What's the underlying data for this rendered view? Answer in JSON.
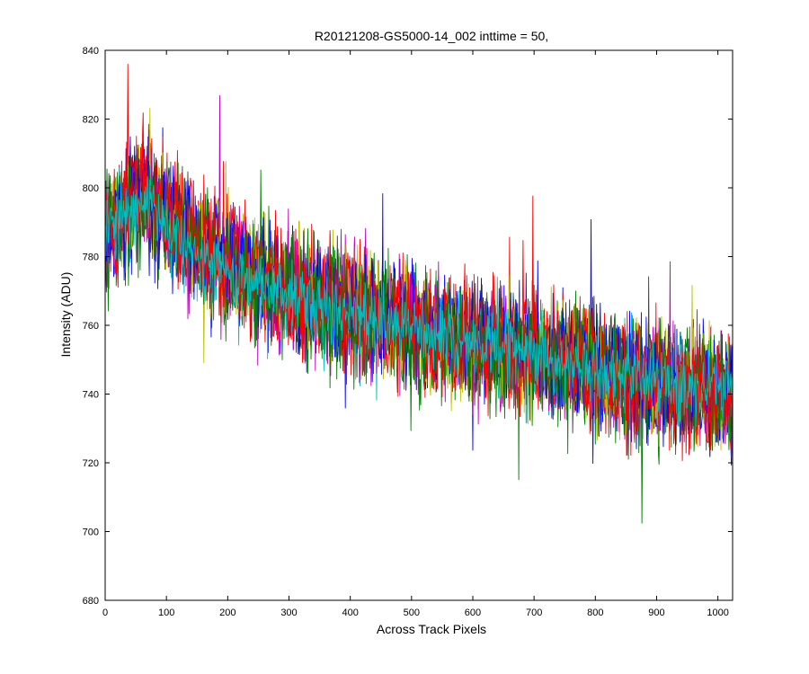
{
  "chart_data": {
    "type": "line",
    "title": "R20121208-GS5000-14_002 inttime = 50,",
    "xlabel": "Across Track Pixels",
    "ylabel": "Intensity (ADU)",
    "xlim": [
      0,
      1024
    ],
    "ylim": [
      680,
      840
    ],
    "x_ticks": [
      0,
      100,
      200,
      300,
      400,
      500,
      600,
      700,
      800,
      900,
      1000
    ],
    "y_ticks": [
      680,
      700,
      720,
      740,
      760,
      780,
      800,
      820,
      840
    ],
    "grid": false,
    "legend": "none",
    "series": [
      {
        "color": "#0000ff",
        "trend": [
          [
            0,
            787
          ],
          [
            60,
            800
          ],
          [
            150,
            783
          ],
          [
            300,
            770
          ],
          [
            500,
            760
          ],
          [
            700,
            752
          ],
          [
            900,
            743
          ],
          [
            1024,
            740
          ]
        ],
        "noise": 11
      },
      {
        "color": "#008000",
        "trend": [
          [
            0,
            786
          ],
          [
            60,
            798
          ],
          [
            150,
            782
          ],
          [
            300,
            769
          ],
          [
            500,
            759
          ],
          [
            700,
            751
          ],
          [
            900,
            742
          ],
          [
            1024,
            739
          ]
        ],
        "noise": 11
      },
      {
        "color": "#ff0000",
        "trend": [
          [
            0,
            788
          ],
          [
            60,
            801
          ],
          [
            150,
            784
          ],
          [
            300,
            771
          ],
          [
            500,
            760
          ],
          [
            700,
            752
          ],
          [
            900,
            742
          ],
          [
            1024,
            738
          ]
        ],
        "noise": 11
      },
      {
        "color": "#00bfbf",
        "trend": [
          [
            0,
            785
          ],
          [
            60,
            797
          ],
          [
            150,
            781
          ],
          [
            300,
            768
          ],
          [
            500,
            758
          ],
          [
            700,
            750
          ],
          [
            900,
            743
          ],
          [
            1024,
            741
          ]
        ],
        "noise": 9
      },
      {
        "color": "#bf00bf",
        "trend": [
          [
            0,
            787
          ],
          [
            60,
            799
          ],
          [
            150,
            782
          ],
          [
            300,
            770
          ],
          [
            500,
            759
          ],
          [
            700,
            751
          ],
          [
            900,
            742
          ],
          [
            1024,
            739
          ]
        ],
        "noise": 11
      },
      {
        "color": "#bfbf00",
        "trend": [
          [
            0,
            788
          ],
          [
            60,
            802
          ],
          [
            150,
            784
          ],
          [
            300,
            771
          ],
          [
            500,
            760
          ],
          [
            700,
            752
          ],
          [
            900,
            743
          ],
          [
            1024,
            740
          ]
        ],
        "noise": 11
      },
      {
        "color": "#404040",
        "trend": [
          [
            0,
            786
          ],
          [
            60,
            798
          ],
          [
            150,
            782
          ],
          [
            300,
            769
          ],
          [
            500,
            759
          ],
          [
            700,
            751
          ],
          [
            900,
            742
          ],
          [
            1024,
            740
          ]
        ],
        "noise": 10
      },
      {
        "color": "#0000ff",
        "trend": [
          [
            0,
            787
          ],
          [
            60,
            800
          ],
          [
            150,
            783
          ],
          [
            300,
            770
          ],
          [
            500,
            760
          ],
          [
            700,
            751
          ],
          [
            900,
            743
          ],
          [
            1024,
            741
          ]
        ],
        "noise": 10
      },
      {
        "color": "#008000",
        "trend": [
          [
            0,
            786
          ],
          [
            60,
            799
          ],
          [
            150,
            782
          ],
          [
            300,
            769
          ],
          [
            500,
            759
          ],
          [
            700,
            750
          ],
          [
            900,
            742
          ],
          [
            1024,
            740
          ]
        ],
        "noise": 10
      },
      {
        "color": "#ff0000",
        "trend": [
          [
            0,
            787
          ],
          [
            60,
            800
          ],
          [
            150,
            783
          ],
          [
            300,
            770
          ],
          [
            500,
            759
          ],
          [
            700,
            751
          ],
          [
            900,
            742
          ],
          [
            1024,
            739
          ]
        ],
        "noise": 10
      },
      {
        "color": "#00bfbf",
        "trend": [
          [
            0,
            786
          ],
          [
            60,
            797
          ],
          [
            150,
            781
          ],
          [
            300,
            769
          ],
          [
            500,
            759
          ],
          [
            700,
            751
          ],
          [
            900,
            744
          ],
          [
            1024,
            742
          ]
        ],
        "noise": 6
      }
    ]
  }
}
